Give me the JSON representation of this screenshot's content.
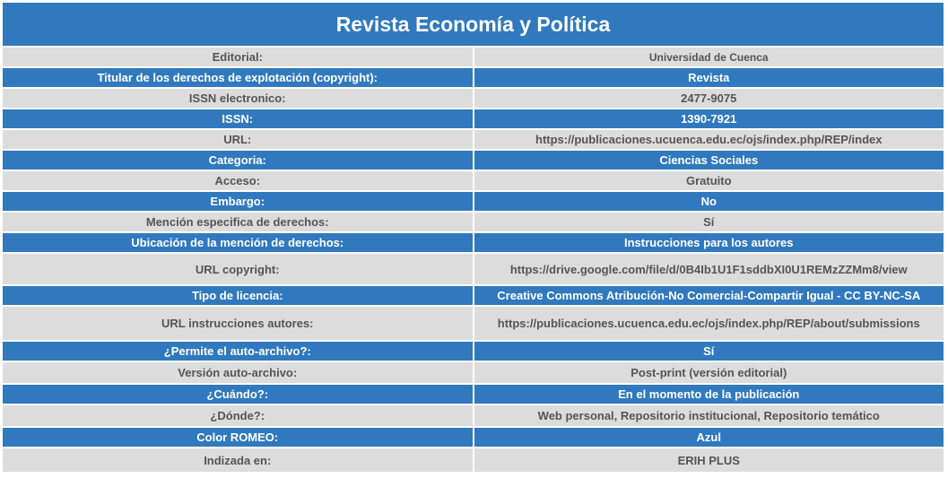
{
  "title": "Revista Economía y Política",
  "rows": [
    {
      "label": "Editorial:",
      "value": "Universidad de Cuenca"
    },
    {
      "label": "Titular de los derechos de explotación (copyright):",
      "value": "Revista"
    },
    {
      "label": "ISSN electronico:",
      "value": "2477-9075"
    },
    {
      "label": "ISSN:",
      "value": "1390-7921"
    },
    {
      "label": "URL:",
      "value": "https://publicaciones.ucuenca.edu.ec/ojs/index.php/REP/index"
    },
    {
      "label": "Categoria:",
      "value": "Ciencias Sociales"
    },
    {
      "label": "Acceso:",
      "value": "Gratuito"
    },
    {
      "label": "Embargo:",
      "value": "No"
    },
    {
      "label": "Mención especifica de derechos:",
      "value": "Sí"
    },
    {
      "label": "Ubicación de la mención de derechos:",
      "value": "Instrucciones para los autores"
    },
    {
      "label": "URL copyright:",
      "value": "https://drive.google.com/file/d/0B4Ib1U1F1sddbXI0U1REMzZZMm8/view"
    },
    {
      "label": "Tipo de licencia:",
      "value": "Creative Commons Atribución-No Comercial-Compartir Igual - CC BY-NC-SA"
    },
    {
      "label": "URL instrucciones autores:",
      "value": "https://publicaciones.ucuenca.edu.ec/ojs/index.php/REP/about/submissions"
    },
    {
      "label": "¿Permite el auto-archivo?:",
      "value": "Sí"
    },
    {
      "label": "Versión auto-archivo:",
      "value": "Post-print (versión editorial)"
    },
    {
      "label": "¿Cuándo?:",
      "value": "En el momento de la publicación"
    },
    {
      "label": "¿Dónde?:",
      "value": "Web personal, Repositorio institucional, Repositorio temático"
    },
    {
      "label": "Color ROMEO:",
      "value": "Azul"
    },
    {
      "label": "Indizada en:",
      "value": "ERIH PLUS"
    }
  ],
  "colors": {
    "header_blue": "#3079be",
    "row_gray": "#dcdcdc",
    "text_gray": "#555555"
  }
}
